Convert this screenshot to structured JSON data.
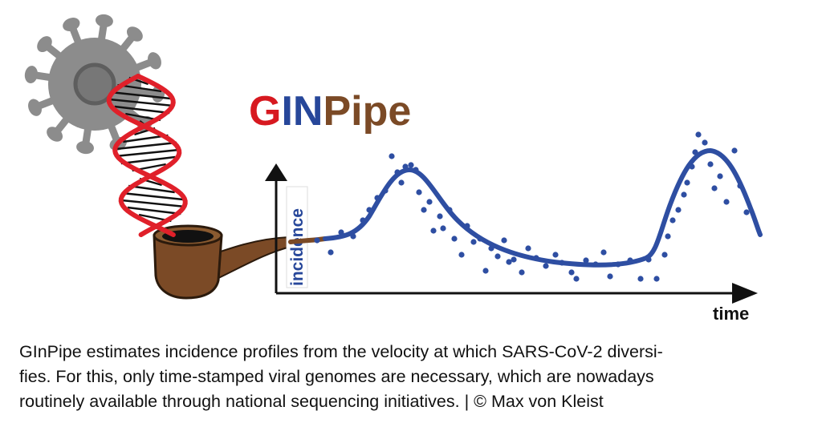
{
  "logo": {
    "part_g": "G",
    "part_in": "IN",
    "part_pipe": "Pipe",
    "color_g": "#d71920",
    "color_in": "#27479a",
    "color_pipe": "#7b4a26"
  },
  "graph": {
    "y_axis_label": "incidence",
    "x_axis_label": "time",
    "curve_color": "#2e4ea2",
    "dot_color": "#2e4ea2"
  },
  "caption": {
    "line1": "GInPipe estimates incidence profiles from the velocity at which SARS-CoV-2 diversi-",
    "line2": "fies. For this, only time-stamped viral genomes are necessary, which are nowadays",
    "line3": "routinely available through national sequencing initiatives.  |  © Max von Kleist"
  },
  "colors": {
    "virus": "#8c8c8c",
    "dna_strand": "#e0202a",
    "pipe": "#7b4a26"
  }
}
